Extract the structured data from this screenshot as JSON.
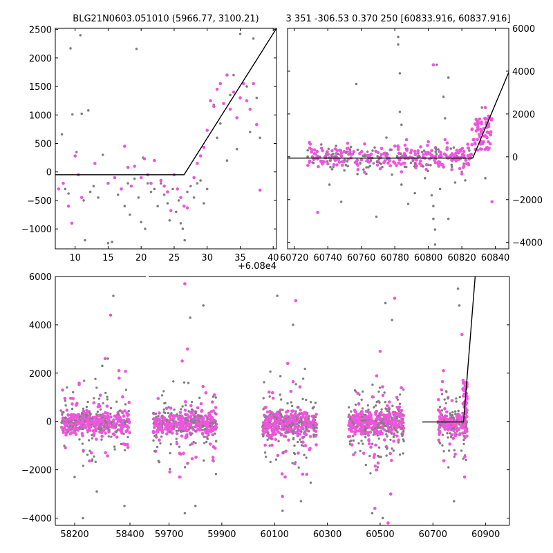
{
  "figure": {
    "title_left": "BLG21N0603.051010 (5966.77, 3100.21)",
    "title_right": "3 351 -306.53 0.370 250 [60833.916, 60837.916]"
  },
  "colors": {
    "gray_points": "#808080",
    "magenta_points": "#ee55dd",
    "model_line": "#000000"
  },
  "chart_data": [
    {
      "type": "scatter",
      "panel": "top-left",
      "xlim": [
        7,
        40.5
      ],
      "ylim": [
        -1350,
        2520
      ],
      "x_offset_label": "+6.08e4",
      "xticks": [
        10,
        15,
        20,
        25,
        30,
        35,
        40
      ],
      "xtick_labels": [
        "10",
        "15",
        "20",
        "25",
        "30",
        "35",
        "40"
      ],
      "yticks": [
        -1000,
        -500,
        0,
        500,
        1000,
        1500,
        2000,
        2500
      ],
      "ytick_labels": [
        "−1000",
        "−500",
        "0",
        "500",
        "1000",
        "1500",
        "2000",
        "2500"
      ],
      "model": [
        [
          7,
          -50
        ],
        [
          26.5,
          -50
        ],
        [
          40.5,
          2520
        ]
      ],
      "series": [
        {
          "color": "gray",
          "points": [
            [
              8,
              660
            ],
            [
              8.5,
              -300
            ],
            [
              9,
              -380
            ],
            [
              9.3,
              2170
            ],
            [
              9.6,
              1010
            ],
            [
              10.2,
              350
            ],
            [
              10.8,
              2400
            ],
            [
              11,
              1020
            ],
            [
              11.3,
              -500
            ],
            [
              11.5,
              -1200
            ],
            [
              12,
              1080
            ],
            [
              12.3,
              -350
            ],
            [
              12.8,
              -250
            ],
            [
              13.5,
              -450
            ],
            [
              14.2,
              300
            ],
            [
              15,
              -1250
            ],
            [
              15.6,
              -1230
            ],
            [
              16.5,
              -400
            ],
            [
              17.5,
              -600
            ],
            [
              18,
              -200
            ],
            [
              18.3,
              -750
            ],
            [
              19,
              -120
            ],
            [
              19.3,
              2160
            ],
            [
              19.6,
              -450
            ],
            [
              20,
              -880
            ],
            [
              20.3,
              250
            ],
            [
              20.6,
              -1000
            ],
            [
              21,
              -200
            ],
            [
              21.5,
              -350
            ],
            [
              22,
              -300
            ],
            [
              22.5,
              -600
            ],
            [
              23,
              -200
            ],
            [
              23.5,
              -400
            ],
            [
              24,
              -550
            ],
            [
              24.3,
              -850
            ],
            [
              24.8,
              -300
            ],
            [
              25.3,
              -700
            ],
            [
              25.7,
              -500
            ],
            [
              26,
              -900
            ],
            [
              26.3,
              -1000
            ],
            [
              26.6,
              -1200
            ],
            [
              27,
              -350
            ],
            [
              27.5,
              -250
            ],
            [
              28,
              -450
            ],
            [
              28.5,
              -200
            ],
            [
              29,
              -150
            ],
            [
              29.5,
              -550
            ],
            [
              30,
              -300
            ],
            [
              31,
              1180
            ],
            [
              31.5,
              600
            ],
            [
              32,
              850
            ],
            [
              32.5,
              1200
            ],
            [
              33,
              200
            ],
            [
              33.5,
              1350
            ],
            [
              34,
              1700
            ],
            [
              34.5,
              400
            ],
            [
              35,
              2420
            ],
            [
              36,
              1500
            ],
            [
              36.5,
              700
            ],
            [
              37,
              2340
            ],
            [
              37.5,
              1300
            ],
            [
              38,
              600
            ]
          ]
        },
        {
          "color": "magenta",
          "points": [
            [
              7.5,
              -300
            ],
            [
              8.2,
              -200
            ],
            [
              9,
              -600
            ],
            [
              9.5,
              -900
            ],
            [
              10,
              280
            ],
            [
              10.5,
              -50
            ],
            [
              11,
              -450
            ],
            [
              13,
              150
            ],
            [
              15,
              -200
            ],
            [
              16,
              -100
            ],
            [
              17,
              -300
            ],
            [
              17.5,
              450
            ],
            [
              18,
              80
            ],
            [
              18.5,
              -250
            ],
            [
              19,
              100
            ],
            [
              20,
              -100
            ],
            [
              20.5,
              230
            ],
            [
              21,
              -50
            ],
            [
              21.5,
              -200
            ],
            [
              22,
              200
            ],
            [
              23,
              -150
            ],
            [
              23.5,
              -250
            ],
            [
              24,
              -350
            ],
            [
              24.5,
              -680
            ],
            [
              25,
              -50
            ],
            [
              25.5,
              -300
            ],
            [
              26,
              -450
            ],
            [
              26.5,
              -600
            ],
            [
              27,
              -630
            ],
            [
              28,
              -100
            ],
            [
              28.5,
              150
            ],
            [
              29,
              280
            ],
            [
              29.5,
              430
            ],
            [
              30,
              730
            ],
            [
              30.5,
              1250
            ],
            [
              31,
              1150
            ],
            [
              31.5,
              1450
            ],
            [
              32,
              1550
            ],
            [
              32.5,
              1200
            ],
            [
              33,
              1700
            ],
            [
              33.5,
              1100
            ],
            [
              34,
              1400
            ],
            [
              34.5,
              950
            ],
            [
              35,
              1300
            ],
            [
              35.5,
              1550
            ],
            [
              36,
              1250
            ],
            [
              36.5,
              1100
            ],
            [
              37,
              1550
            ],
            [
              37.5,
              830
            ],
            [
              38,
              -320
            ]
          ]
        }
      ]
    },
    {
      "type": "scatter",
      "panel": "top-right",
      "xlim": [
        60716,
        60848
      ],
      "ylim": [
        -4300,
        6000
      ],
      "xticks": [
        60720,
        60740,
        60760,
        60780,
        60800,
        60820,
        60840
      ],
      "xtick_labels": [
        "60720",
        "60740",
        "60760",
        "60780",
        "60800",
        "60820",
        "60840"
      ],
      "yticks": [
        -4000,
        -2000,
        0,
        2000,
        4000,
        6000
      ],
      "ytick_labels": [
        "−4000",
        "−2000",
        "0",
        "2000",
        "4000",
        "6000"
      ],
      "model": [
        [
          60716,
          -60
        ],
        [
          60826.5,
          -60
        ],
        [
          60848,
          3950
        ]
      ],
      "series": [
        {
          "color": "gray",
          "points": [
            [
              60728,
              300
            ],
            [
              60734,
              -2600
            ],
            [
              60741,
              -1300
            ],
            [
              60748,
              -2100
            ],
            [
              60757,
              3400
            ],
            [
              60763,
              -800
            ],
            [
              60769,
              -2800
            ],
            [
              60775,
              900
            ],
            [
              60782,
              5600
            ],
            [
              60782,
              5250
            ],
            [
              60783,
              3900
            ],
            [
              60783,
              2100
            ],
            [
              60784,
              1500
            ],
            [
              60784,
              -1300
            ],
            [
              60788,
              -2200
            ],
            [
              60792,
              -1700
            ],
            [
              60798,
              -1000
            ],
            [
              60802,
              -1800
            ],
            [
              60803,
              -2300
            ],
            [
              60803,
              -2900
            ],
            [
              60804,
              -3400
            ],
            [
              60804,
              -4100
            ],
            [
              60805,
              4300
            ],
            [
              60807,
              -1500
            ],
            [
              60809,
              2800
            ],
            [
              60810,
              1800
            ],
            [
              60812,
              3700
            ],
            [
              60812,
              -2900
            ],
            [
              60816,
              -1200
            ],
            [
              60820,
              -700
            ],
            [
              60822,
              -1100
            ],
            [
              60832,
              2300
            ],
            [
              60834,
              -1000
            ],
            [
              60836,
              1500
            ]
          ]
        },
        {
          "color": "magenta",
          "points": [
            [
              60734,
              -2600
            ],
            [
              60744,
              -100
            ],
            [
              60752,
              400
            ],
            [
              60758,
              -600
            ],
            [
              60762,
              600
            ],
            [
              60770,
              200
            ],
            [
              60776,
              -300
            ],
            [
              60780,
              500
            ],
            [
              60784,
              -700
            ],
            [
              60787,
              800
            ],
            [
              60790,
              300
            ],
            [
              60796,
              -400
            ],
            [
              60800,
              700
            ],
            [
              60803,
              4300
            ],
            [
              60806,
              -300
            ],
            [
              60810,
              800
            ],
            [
              60814,
              -600
            ],
            [
              60817,
              300
            ],
            [
              60820,
              -800
            ],
            [
              60824,
              400
            ],
            [
              60828,
              600
            ],
            [
              60830,
              1600
            ],
            [
              60832,
              1200
            ],
            [
              60834,
              2300
            ],
            [
              60835,
              900
            ],
            [
              60836,
              1900
            ],
            [
              60837,
              600
            ],
            [
              60838,
              -2100
            ]
          ]
        }
      ]
    },
    {
      "type": "scatter",
      "panel": "bottom",
      "ylim": [
        -4300,
        6000
      ],
      "axis_breaks": [
        {
          "xlim": [
            58130,
            58460
          ],
          "xticks": [
            58200,
            58400
          ]
        },
        {
          "xlim": [
            59620,
            60990
          ],
          "xticks": [
            59700,
            59900,
            60100,
            60300,
            60500,
            60700,
            60900
          ]
        }
      ],
      "xtick_labels": [
        "58200",
        "58400",
        "59700",
        "59900",
        "60100",
        "60300",
        "60500",
        "60700",
        "60900"
      ],
      "yticks": [
        -4000,
        -2000,
        0,
        2000,
        4000,
        6000
      ],
      "ytick_labels": [
        "−4000",
        "−2000",
        "0",
        "2000",
        "4000",
        "6000"
      ],
      "model": [
        [
          60660,
          -20
        ],
        [
          60816,
          -20
        ],
        [
          60860,
          6000
        ]
      ],
      "seasons": [
        {
          "x0": 58150,
          "x1": 58400
        },
        {
          "x0": 59640,
          "x1": 59880
        },
        {
          "x0": 60055,
          "x1": 60260
        },
        {
          "x0": 60380,
          "x1": 60590
        },
        {
          "x0": 60720,
          "x1": 60830
        }
      ],
      "outliers": {
        "gray": [
          [
            58340,
            5200
          ],
          [
            58320,
            2600
          ],
          [
            58300,
            2300
          ],
          [
            58200,
            -2300
          ],
          [
            58280,
            -2900
          ],
          [
            58380,
            -3500
          ],
          [
            58230,
            -4000
          ],
          [
            59780,
            4300
          ],
          [
            59760,
            -3800
          ],
          [
            59800,
            -3500
          ],
          [
            59830,
            4800
          ],
          [
            60110,
            5200
          ],
          [
            60170,
            4000
          ],
          [
            60130,
            -3700
          ],
          [
            60200,
            -3300
          ],
          [
            60520,
            4900
          ],
          [
            60510,
            -4000
          ],
          [
            60470,
            -3800
          ],
          [
            60545,
            4200
          ],
          [
            60795,
            5500
          ],
          [
            60780,
            -3300
          ],
          [
            60800,
            4800
          ]
        ],
        "magenta": [
          [
            58330,
            4400
          ],
          [
            58310,
            2600
          ],
          [
            58360,
            2100
          ],
          [
            59760,
            5700
          ],
          [
            59750,
            2500
          ],
          [
            59770,
            3000
          ],
          [
            59740,
            -2300
          ],
          [
            60180,
            5000
          ],
          [
            60150,
            2400
          ],
          [
            60140,
            -2300
          ],
          [
            60130,
            -3100
          ],
          [
            60555,
            5100
          ],
          [
            60500,
            2900
          ],
          [
            60540,
            -3000
          ],
          [
            60480,
            -3600
          ],
          [
            60530,
            -4200
          ],
          [
            60740,
            2100
          ],
          [
            60810,
            3600
          ],
          [
            60820,
            -2300
          ]
        ]
      }
    }
  ]
}
